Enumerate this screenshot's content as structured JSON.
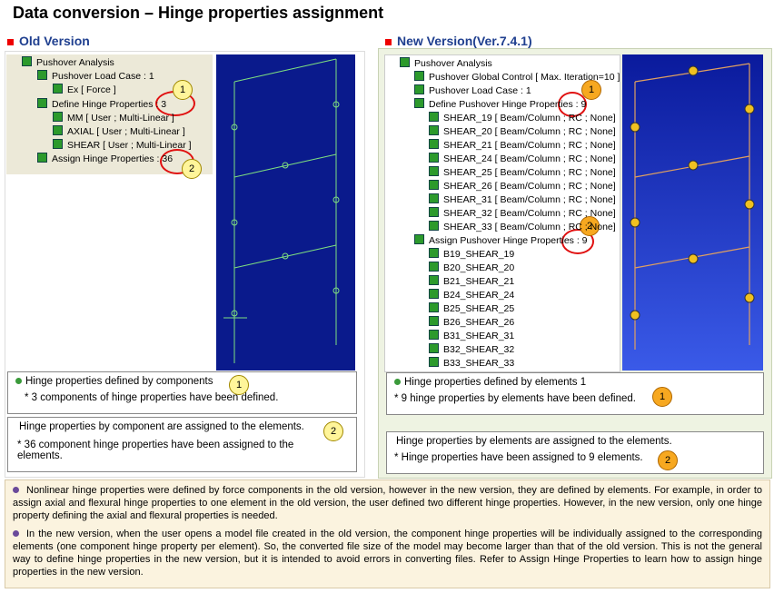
{
  "title": "Data conversion – Hinge properties assignment",
  "old": {
    "heading": "Old Version",
    "tree": [
      "Pushover Analysis",
      "Pushover Load Case : 1",
      "Ex [ Force ]",
      "Define Hinge Properties : 3",
      "MM [ User ; Multi-Linear ]",
      "AXIAL [ User ; Multi-Linear ]",
      "SHEAR [ User ; Multi-Linear ]",
      "Assign Hinge Properties : 36"
    ],
    "tree_badges": [
      "1",
      "2"
    ],
    "note1": {
      "title": "Hinge properties defined by components",
      "badge": "1",
      "text": "* 3 components of hinge properties have been defined."
    },
    "note2": {
      "title": "Hinge properties by component are assigned to the elements.",
      "badge": "2",
      "text": "* 36 component hinge properties have been assigned to the elements."
    }
  },
  "new": {
    "heading": "New Version(Ver.7.4.1)",
    "tree": [
      "Pushover Analysis",
      "Pushover Global Control [ Max. Iteration=10 ]",
      "Pushover Load Case : 1",
      "Define Pushover Hinge Properties : 9",
      "SHEAR_19 [ Beam/Column ; RC ; None]",
      "SHEAR_20 [ Beam/Column ; RC ; None]",
      "SHEAR_21 [ Beam/Column ; RC ; None]",
      "SHEAR_24 [ Beam/Column ; RC ; None]",
      "SHEAR_25 [ Beam/Column ; RC ; None]",
      "SHEAR_26 [ Beam/Column ; RC ; None]",
      "SHEAR_31 [ Beam/Column ; RC ; None]",
      "SHEAR_32 [ Beam/Column ; RC ; None]",
      "SHEAR_33 [ Beam/Column ; RC ; None]",
      "Assign Pushover Hinge Properties : 9",
      "B19_SHEAR_19",
      "B20_SHEAR_20",
      "B21_SHEAR_21",
      "B24_SHEAR_24",
      "B25_SHEAR_25",
      "B26_SHEAR_26",
      "B31_SHEAR_31",
      "B32_SHEAR_32",
      "B33_SHEAR_33"
    ],
    "tree_badges": [
      "1",
      "2"
    ],
    "note1": {
      "title": "Hinge properties defined by elements 1",
      "badge": "1",
      "text": "* 9 hinge properties by elements have been defined."
    },
    "note2": {
      "title": "Hinge properties by elements are assigned to the elements.",
      "badge": "2",
      "text": "* Hinge properties have been assigned to 9 elements."
    }
  },
  "summary": [
    "Nonlinear hinge properties were defined by force components in the old version, however in the new version, they are defined by elements. For example, in order to assign axial and flexural hinge properties to one element in the old version, the user defined two different hinge properties. However, in the new version, only one hinge property defining the axial and flexural properties is needed.",
    "In the new version, when the user opens a model file created in the old version, the component hinge properties will be individually assigned to the corresponding elements (one component hinge property per element). So, the converted file size of the model may become larger than that of the old version. This is not the general way to define hinge properties in the new version, but it is intended to avoid errors in converting files. Refer to Assign Hinge Properties to learn how to assign hinge properties in the new version."
  ]
}
